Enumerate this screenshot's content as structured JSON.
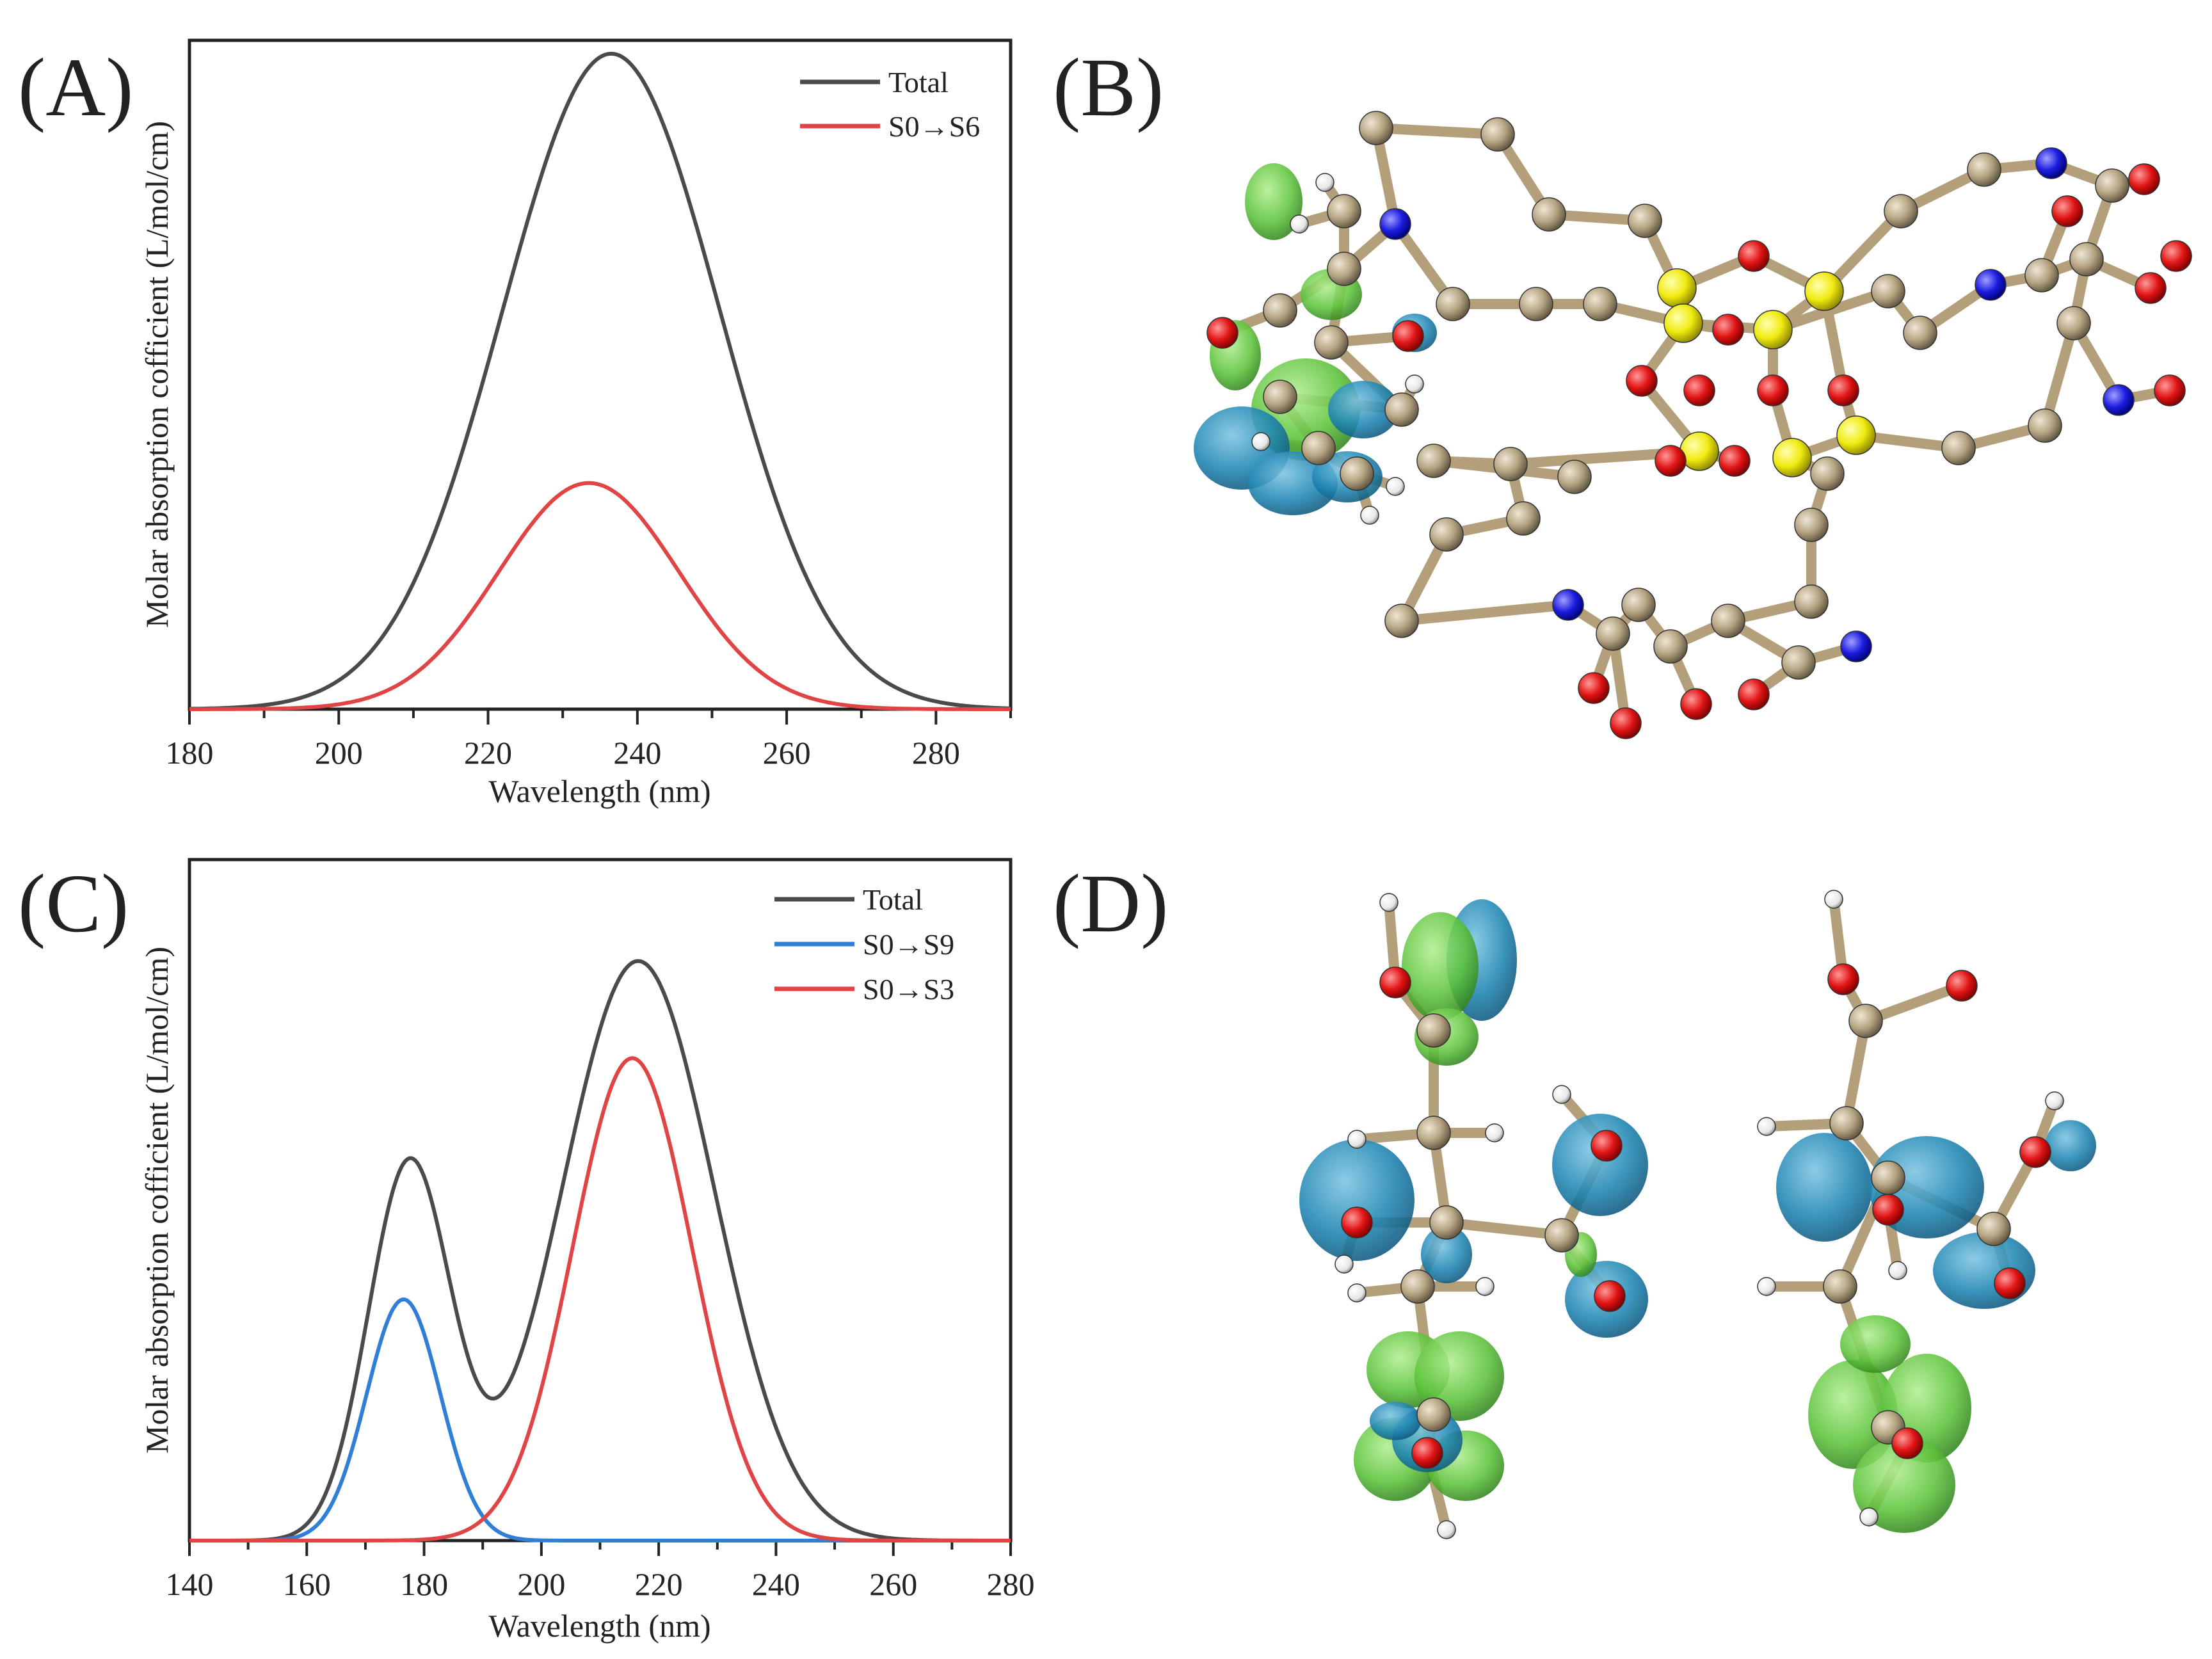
{
  "panels": [
    {
      "letter": "(A)"
    },
    {
      "letter": "(B)"
    },
    {
      "letter": "(C)"
    },
    {
      "letter": "(D)"
    }
  ],
  "chart_data": [
    {
      "panel": "(A)",
      "type": "line",
      "xlabel": "Wavelength (nm)",
      "ylabel": "Molar absorption cofficient (L/mol/cm)",
      "xlim": [
        180,
        290
      ],
      "ylim": [
        0,
        1.0
      ],
      "xticks": [
        180,
        200,
        220,
        240,
        260,
        280
      ],
      "y_ticks_labeled": false,
      "grid": false,
      "legend_position": "top-right",
      "series": [
        {
          "name": "Total",
          "color": "#4a4a4a",
          "peaks": [
            {
              "center": 236.5,
              "height": 1.0,
              "sigma": 14.6
            }
          ]
        },
        {
          "name": "S0→S6",
          "color": "#e04444",
          "peaks": [
            {
              "center": 233.5,
              "height": 0.345,
              "sigma": 12.1
            }
          ]
        }
      ]
    },
    {
      "panel": "(C)",
      "type": "line",
      "xlabel": "Wavelength (nm)",
      "ylabel": "Molar absorption cofficient (L/mol/cm)",
      "xlim": [
        140,
        280
      ],
      "ylim": [
        0,
        1.0
      ],
      "xticks": [
        140,
        160,
        180,
        200,
        220,
        240,
        260,
        280
      ],
      "y_ticks_labeled": false,
      "grid": false,
      "legend_position": "top-right",
      "series": [
        {
          "name": "Total",
          "color": "#4a4a4a",
          "peaks": [
            {
              "center": 177.5,
              "height": 0.6,
              "sigma": 7.0
            },
            {
              "center": 216.5,
              "height": 0.925,
              "sigma": 13.0
            }
          ]
        },
        {
          "name": "S0→S9",
          "color": "#2f7fd6",
          "peaks": [
            {
              "center": 176.5,
              "height": 0.385,
              "sigma": 6.3
            }
          ]
        },
        {
          "name": "S0→S3",
          "color": "#e04444",
          "peaks": [
            {
              "center": 215.5,
              "height": 0.77,
              "sigma": 10.2
            }
          ]
        }
      ]
    }
  ]
}
